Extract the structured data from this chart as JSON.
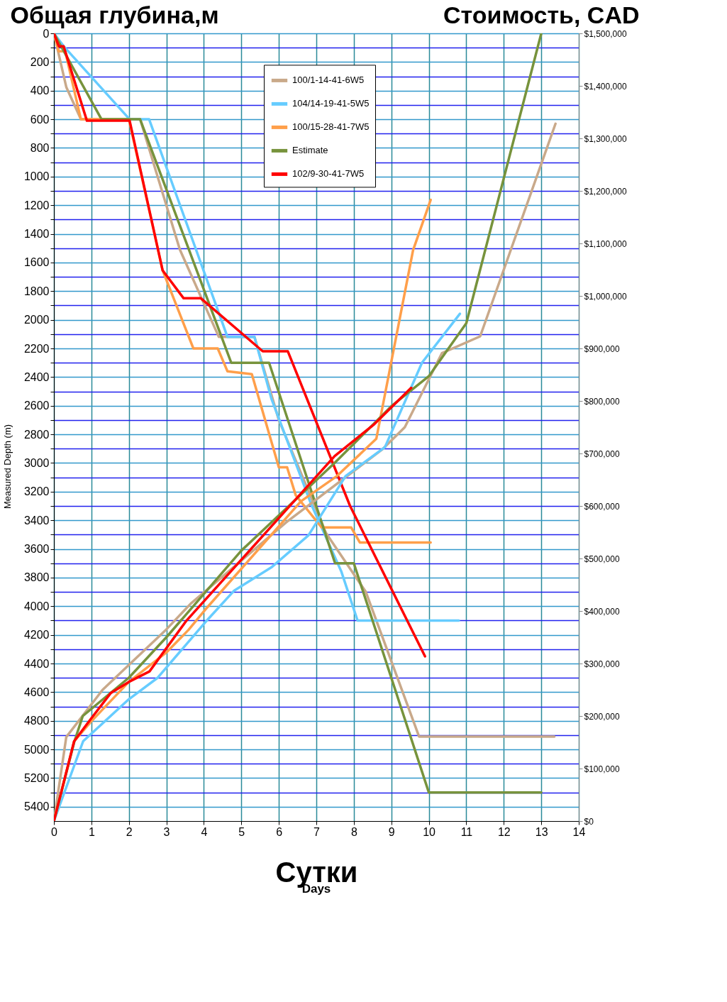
{
  "chart_data": {
    "type": "line",
    "ylabel": "Общая глубина,м",
    "y2label": "Стоимость, CAD",
    "xlabel": "Сутки",
    "annotations": [
      "Days",
      "Measured Depth (m)"
    ],
    "xlim": [
      0,
      14
    ],
    "xticks": [
      0,
      1,
      2,
      3,
      4,
      5,
      6,
      7,
      8,
      9,
      10,
      11,
      12,
      13,
      14
    ],
    "ylim": [
      5500,
      0
    ],
    "yticks": [
      0,
      {
        "value": 100,
        "label": null
      },
      200,
      {
        "value": 300,
        "label": null
      },
      400,
      {
        "value": 500,
        "label": null
      },
      600,
      {
        "value": 700,
        "label": null
      },
      800,
      {
        "value": 900,
        "label": null
      },
      1000,
      {
        "value": 1100,
        "label": null
      },
      1200,
      {
        "value": 1300,
        "label": null
      },
      1400,
      {
        "value": 1500,
        "label": null
      },
      1600,
      {
        "value": 1700,
        "label": null
      },
      1800,
      {
        "value": 1900,
        "label": null
      },
      2000,
      {
        "value": 2100,
        "label": null
      },
      2200,
      {
        "value": 2300,
        "label": null
      },
      2400,
      {
        "value": 2500,
        "label": null
      },
      2600,
      {
        "value": 2700,
        "label": null
      },
      2800,
      {
        "value": 2900,
        "label": null
      },
      3000,
      {
        "value": 3100,
        "label": null
      },
      3200,
      {
        "value": 3300,
        "label": null
      },
      3400,
      {
        "value": 3500,
        "label": null
      },
      3600,
      {
        "value": 3700,
        "label": null
      },
      3800,
      {
        "value": 3900,
        "label": null
      },
      4000,
      {
        "value": 4100,
        "label": null
      },
      4200,
      {
        "value": 4300,
        "label": null
      },
      4400,
      {
        "value": 4500,
        "label": null
      },
      4600,
      {
        "value": 4700,
        "label": null
      },
      4800,
      {
        "value": 4900,
        "label": null
      },
      5000,
      {
        "value": 5100,
        "label": null
      },
      5200,
      {
        "value": 5300,
        "label": null
      },
      5400
    ],
    "y2lim": [
      0,
      1500000
    ],
    "y2ticks": [
      {
        "value": 0,
        "label": "$0"
      },
      {
        "value": 100000,
        "label": "$100,000"
      },
      {
        "value": 200000,
        "label": "$200,000"
      },
      {
        "value": 300000,
        "label": "$300,000"
      },
      {
        "value": 400000,
        "label": "$400,000"
      },
      {
        "value": 500000,
        "label": "$500,000"
      },
      {
        "value": 600000,
        "label": "$600,000"
      },
      {
        "value": 700000,
        "label": "$700,000"
      },
      {
        "value": 800000,
        "label": "$800,000"
      },
      {
        "value": 900000,
        "label": "$900,000"
      },
      {
        "value": 1000000,
        "label": "$1,000,000"
      },
      {
        "value": 1100000,
        "label": "$1,100,000"
      },
      {
        "value": 1200000,
        "label": "$1,200,000"
      },
      {
        "value": 1300000,
        "label": "$1,300,000"
      },
      {
        "value": 1400000,
        "label": "$1,400,000"
      },
      {
        "value": 1500000,
        "label": "$1,500,000"
      }
    ],
    "grid": true,
    "legend": "top",
    "series": [
      {
        "name": "100/1-14-41-6W5",
        "color": "#c9a98a",
        "x": [
          0,
          0.33,
          0.72,
          2.3,
          3.36,
          4.4,
          5.35,
          6.0,
          7.26,
          8.32,
          9.74,
          13.35
        ],
        "values": [
          0,
          375,
          600,
          600,
          1510,
          2120,
          2120,
          2700,
          3490,
          3900,
          4910,
          4910
        ]
      },
      {
        "name": "104/14-19-41-5W5",
        "color": "#66ccff",
        "x": [
          0,
          0.26,
          2.02,
          2.54,
          4.63,
          5.35,
          5.8,
          6.85,
          7.67,
          8.1,
          10.8
        ],
        "values": [
          0,
          90,
          600,
          600,
          2120,
          2120,
          2550,
          3280,
          3760,
          4100,
          4100
        ]
      },
      {
        "name": "100/15-28-41-7W5",
        "color": "#ff9f4a",
        "x": [
          0,
          0.13,
          0.3,
          0.72,
          2.0,
          2.9,
          3.72,
          4.37,
          4.63,
          5.28,
          6.0,
          6.22,
          6.45,
          7.14,
          7.93,
          8.16,
          10.05
        ],
        "values": [
          0,
          125,
          125,
          600,
          600,
          1655,
          2200,
          2200,
          2360,
          2380,
          3030,
          3030,
          3225,
          3450,
          3450,
          3555,
          3555
        ]
      },
      {
        "name": "Estimate",
        "color": "#77933c",
        "x": [
          0,
          1.27,
          2.3,
          4.73,
          5.74,
          7.5,
          8.0,
          10.0,
          13.0
        ],
        "values": [
          0,
          600,
          600,
          2300,
          2300,
          3700,
          3700,
          5300,
          5300
        ]
      },
      {
        "name": "102/9-30-41-7W5",
        "color": "#ff0000",
        "x": [
          0,
          0.13,
          0.26,
          0.88,
          2.02,
          2.9,
          3.46,
          3.92,
          5.57,
          6.24,
          7.9,
          9.9
        ],
        "values": [
          0,
          90,
          90,
          610,
          610,
          1655,
          1850,
          1850,
          2220,
          2220,
          3300,
          4350
        ]
      },
      {
        "axis": "y2",
        "color": "#c9a98a",
        "x": [
          0,
          0.33,
          1.3,
          3.0,
          3.65,
          6.2,
          8.78,
          9.36,
          10.35,
          11.37,
          13.38
        ],
        "values": [
          0,
          160000,
          250000,
          365000,
          414000,
          569000,
          709000,
          750000,
          891000,
          923000,
          1328000
        ]
      },
      {
        "axis": "y2",
        "color": "#66ccff",
        "x": [
          0,
          0.78,
          2.0,
          2.77,
          4.03,
          4.81,
          5.8,
          6.79,
          7.78,
          8.83,
          9.82,
          10.83
        ],
        "values": [
          0,
          152000,
          232000,
          273000,
          378000,
          439000,
          483000,
          544000,
          657000,
          712000,
          873000,
          966000
        ]
      },
      {
        "axis": "y2",
        "color": "#ff9f4a",
        "x": [
          0,
          0.54,
          1.0,
          2.0,
          3.0,
          3.59,
          4.03,
          6.59,
          7.55,
          8.6,
          9.58,
          10.05
        ],
        "values": [
          0,
          152000,
          190000,
          265000,
          321000,
          364000,
          402000,
          609000,
          657000,
          728000,
          1087000,
          1183000
        ]
      },
      {
        "axis": "y2",
        "color": "#77933c",
        "x": [
          0,
          0.54,
          0.77,
          2.0,
          3.0,
          5.0,
          7.49,
          9.0,
          10.0,
          11.0,
          13.0
        ],
        "values": [
          0,
          150000,
          200000,
          273000,
          350000,
          515000,
          682000,
          790000,
          847000,
          948000,
          1500000
        ]
      },
      {
        "axis": "y2",
        "color": "#ff0000",
        "x": [
          0,
          0.54,
          0.98,
          1.52,
          2.0,
          2.55,
          3.54,
          7.49,
          8.55,
          9.53
        ],
        "values": [
          0,
          152000,
          194000,
          244000,
          265000,
          285000,
          382000,
          695000,
          756000,
          825000
        ]
      }
    ]
  }
}
